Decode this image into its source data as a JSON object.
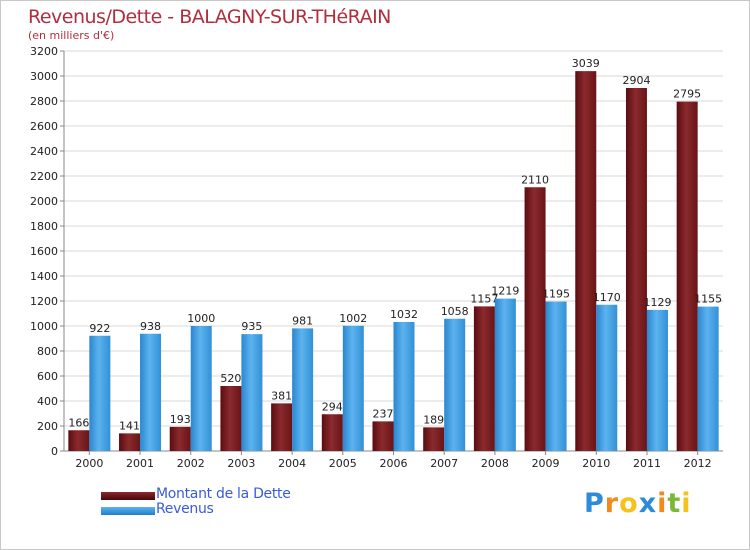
{
  "header": {
    "title": "Revenus/Dette - BALAGNY-SUR-THéRAIN",
    "subtitle": "(en milliers d'€)"
  },
  "colors": {
    "title": "#b32d3c",
    "dette": "#7a1a1e",
    "revenus": "#3d9de0",
    "legend_text": "#3b5bd6"
  },
  "chart_data": {
    "type": "bar",
    "categories": [
      "2000",
      "2001",
      "2002",
      "2003",
      "2004",
      "2005",
      "2006",
      "2007",
      "2008",
      "2009",
      "2010",
      "2011",
      "2012"
    ],
    "series": [
      {
        "name": "Montant de la Dette",
        "values": [
          166,
          141,
          193,
          520,
          381,
          294,
          237,
          189,
          1157,
          2110,
          3039,
          2904,
          2795
        ]
      },
      {
        "name": "Revenus",
        "values": [
          922,
          938,
          1000,
          935,
          981,
          1002,
          1032,
          1058,
          1219,
          1195,
          1170,
          1129,
          1155
        ]
      }
    ],
    "title": "Revenus/Dette - BALAGNY-SUR-THéRAIN",
    "subtitle": "(en milliers d'€)",
    "ylim": [
      0,
      3200
    ],
    "ytick_step": 200,
    "grid": "horizontal",
    "legend_position": "bottom-left"
  },
  "legend": {
    "items": [
      {
        "label": "Montant de la Dette"
      },
      {
        "label": "Revenus"
      }
    ]
  },
  "logo": {
    "text": "Proxiti",
    "letters": [
      {
        "ch": "P",
        "color": "#2e8bd8"
      },
      {
        "ch": "r",
        "color": "#f08a1c"
      },
      {
        "ch": "o",
        "color": "#f5c11a"
      },
      {
        "ch": "x",
        "color": "#2e8bd8"
      },
      {
        "ch": "i",
        "color": "#f08a1c"
      },
      {
        "ch": "t",
        "color": "#7ab83a"
      },
      {
        "ch": "i",
        "color": "#f5c11a"
      }
    ]
  }
}
